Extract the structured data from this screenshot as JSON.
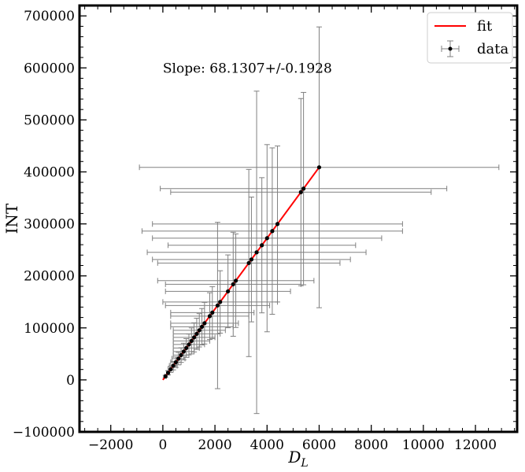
{
  "chart_data": {
    "type": "scatter",
    "title": "",
    "xlabel": "D",
    "xlabel_sub": "L",
    "ylabel": "INT",
    "xlim": [
      -3200,
      13600
    ],
    "ylim": [
      -100000,
      720000
    ],
    "xticks": [
      -2000,
      0,
      2000,
      4000,
      6000,
      8000,
      10000,
      12000
    ],
    "yticks": [
      -100000,
      0,
      100000,
      200000,
      300000,
      400000,
      500000,
      600000,
      700000
    ],
    "xtick_labels": [
      "−2000",
      "0",
      "2000",
      "4000",
      "6000",
      "8000",
      "10000",
      "12000"
    ],
    "ytick_labels": [
      "−100000",
      "0",
      "100000",
      "200000",
      "300000",
      "400000",
      "500000",
      "600000",
      "700000"
    ],
    "annotation": "Slope: 68.1307+/-0.1928",
    "grid": false,
    "legend_position": "top-right",
    "legend": [
      {
        "label": "fit",
        "kind": "line",
        "color": "#ff0000"
      },
      {
        "label": "data",
        "kind": "errorbar",
        "color": "#000000"
      }
    ],
    "series": [
      {
        "name": "fit",
        "kind": "line",
        "color": "#ff0000",
        "x": [
          0,
          6000
        ],
        "y": [
          0,
          408784
        ]
      },
      {
        "name": "data",
        "kind": "errorbar",
        "color": "#000000",
        "errcolor": "#808080",
        "points": [
          {
            "x": 100,
            "y": 6800,
            "xerr": 30,
            "yerr": 2000
          },
          {
            "x": 200,
            "y": 13600,
            "xerr": 60,
            "yerr": 4000
          },
          {
            "x": 300,
            "y": 20400,
            "xerr": 100,
            "yerr": 6000
          },
          {
            "x": 400,
            "y": 27250,
            "xerr": 150,
            "yerr": 8000
          },
          {
            "x": 500,
            "y": 34070,
            "xerr": 200,
            "yerr": 10000
          },
          {
            "x": 600,
            "y": 40880,
            "xerr": 250,
            "yerr": 12000
          },
          {
            "x": 700,
            "y": 47690,
            "xerr": 300,
            "yerr": 14000
          },
          {
            "x": 800,
            "y": 54500,
            "xerr": 400,
            "yerr": 16000
          },
          {
            "x": 900,
            "y": 61320,
            "xerr": 500,
            "yerr": 18000
          },
          {
            "x": 1000,
            "y": 68130,
            "xerr": 600,
            "yerr": 20000
          },
          {
            "x": 1100,
            "y": 74940,
            "xerr": 700,
            "yerr": 25000
          },
          {
            "x": 1200,
            "y": 81760,
            "xerr": 800,
            "yerr": 28000
          },
          {
            "x": 1300,
            "y": 88570,
            "xerr": 900,
            "yerr": 30000
          },
          {
            "x": 1400,
            "y": 95380,
            "xerr": 1000,
            "yerr": 32000
          },
          {
            "x": 1500,
            "y": 102200,
            "xerr": 1200,
            "yerr": 35000
          },
          {
            "x": 1600,
            "y": 109000,
            "xerr": 1300,
            "yerr": 40000
          },
          {
            "x": 1800,
            "y": 122600,
            "xerr": 1500,
            "yerr": 45000
          },
          {
            "x": 1900,
            "y": 129400,
            "xerr": 1600,
            "yerr": 50000
          },
          {
            "x": 2100,
            "y": 143100,
            "xerr": 2000,
            "yerr": 160000
          },
          {
            "x": 2200,
            "y": 149900,
            "xerr": 2200,
            "yerr": 60000
          },
          {
            "x": 2500,
            "y": 170300,
            "xerr": 2400,
            "yerr": 70000
          },
          {
            "x": 2700,
            "y": 183900,
            "xerr": 2600,
            "yerr": 100000
          },
          {
            "x": 2800,
            "y": 190800,
            "xerr": 3000,
            "yerr": 90000
          },
          {
            "x": 3300,
            "y": 224800,
            "xerr": 3500,
            "yerr": 180000
          },
          {
            "x": 3400,
            "y": 231600,
            "xerr": 3800,
            "yerr": 120000
          },
          {
            "x": 3600,
            "y": 245300,
            "xerr": 4200,
            "yerr": 310000
          },
          {
            "x": 3800,
            "y": 258900,
            "xerr": 3600,
            "yerr": 130000
          },
          {
            "x": 4000,
            "y": 272500,
            "xerr": 4400,
            "yerr": 180000
          },
          {
            "x": 4200,
            "y": 286200,
            "xerr": 5000,
            "yerr": 160000
          },
          {
            "x": 4400,
            "y": 299800,
            "xerr": 4800,
            "yerr": 150000
          },
          {
            "x": 5300,
            "y": 361100,
            "xerr": 5000,
            "yerr": 180000
          },
          {
            "x": 5400,
            "y": 367900,
            "xerr": 5500,
            "yerr": 185000
          },
          {
            "x": 6000,
            "y": 408800,
            "xerr": 6900,
            "yerr": 270000
          }
        ]
      }
    ]
  }
}
